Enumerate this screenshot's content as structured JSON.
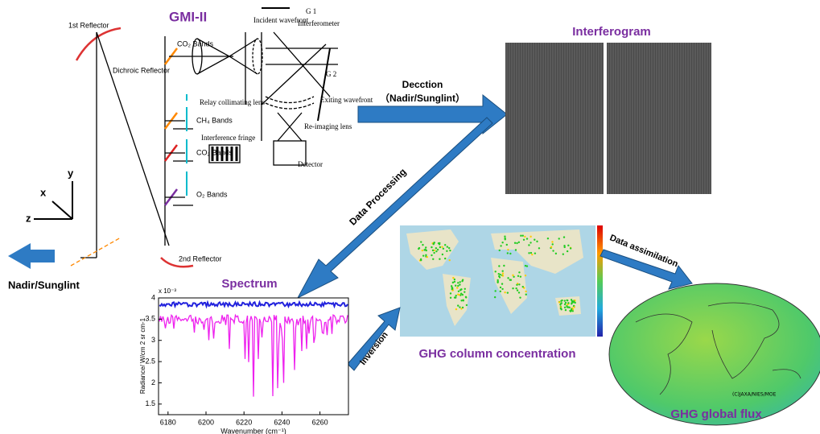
{
  "optics": {
    "title": "GMI-II",
    "first_reflector": "1st Reflector",
    "second_reflector": "2nd Reflector",
    "dichroic": "Dichroic Reflector",
    "bands": [
      "CO₂ Bands",
      "CH₄ Bands",
      "CO₂ Bands",
      "O₂ Bands"
    ],
    "relay_lens": "Relay collimating lens",
    "incident": "Incident wavefront",
    "interferometer": "Interferometer",
    "g1": "G 1",
    "g2": "G 2",
    "exiting": "Exiting wavefront",
    "reimaging": "Re-imaging lens",
    "fringe": "Interference fringe",
    "detector": "Detector"
  },
  "axes": {
    "x": "x",
    "y": "y",
    "z": "z"
  },
  "nadir": "Nadir/Sunglint",
  "detection": {
    "label": "Decction",
    "sub": "（Nadir/Sunglint）"
  },
  "interferogram": {
    "title": "Interferogram"
  },
  "processing": "Data Processing",
  "spectrum": {
    "title": "Spectrum",
    "scale": "x 10⁻³",
    "y_label": "Radiance/ W/cm 2 sr cm-1",
    "x_label": "Wavenumber (cm⁻¹)",
    "yticks": [
      4,
      3.5,
      3,
      2.5,
      2,
      1.5
    ],
    "xticks": [
      6180,
      6200,
      6220,
      6240,
      6260
    ]
  },
  "inversion": "Inversion",
  "concentration": {
    "title": "GHG column concentration"
  },
  "assimilation": "Data assimilation",
  "flux": {
    "title": "GHG global flux",
    "credit": "(C)JAXA/NIES/MOE"
  }
}
